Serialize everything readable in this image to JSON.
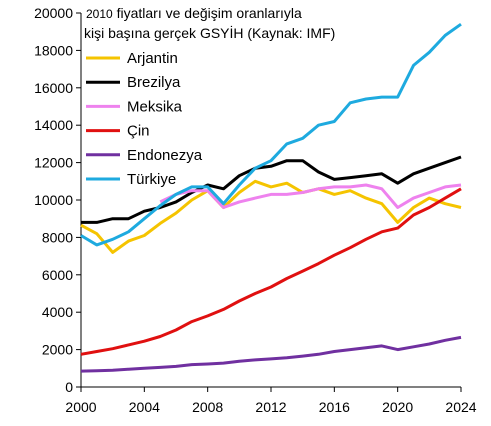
{
  "chart_data": {
    "type": "line",
    "title_lines": [
      "2010 fiyatları ve değişim oranlarıyla",
      "kişi başına gerçek GSYİH (Kaynak: IMF)"
    ],
    "title_year": "2010",
    "title_rest_1": " fiyatları ve değişim oranlarıyla",
    "title_line_2": "kişi başına gerçek GSYİH (Kaynak: IMF)",
    "xlim": [
      2000,
      2024
    ],
    "ylim": [
      0,
      20000
    ],
    "x_ticks": [
      2000,
      2004,
      2008,
      2012,
      2016,
      2020,
      2024
    ],
    "y_ticks": [
      0,
      2000,
      4000,
      6000,
      8000,
      10000,
      12000,
      14000,
      16000,
      18000,
      20000
    ],
    "legend_position": "top-left",
    "x": [
      2000,
      2001,
      2002,
      2003,
      2004,
      2005,
      2006,
      2007,
      2008,
      2009,
      2010,
      2011,
      2012,
      2013,
      2014,
      2015,
      2016,
      2017,
      2018,
      2019,
      2020,
      2021,
      2022,
      2023,
      2024
    ],
    "series": [
      {
        "name": "Arjantin",
        "color": "#f5c400",
        "values": [
          8650,
          8200,
          7200,
          7800,
          8100,
          8750,
          9300,
          10000,
          10500,
          9600,
          10400,
          11000,
          10700,
          10900,
          10400,
          10600,
          10300,
          10500,
          10100,
          9800,
          8800,
          9600,
          10100,
          9800,
          9600
        ]
      },
      {
        "name": "Brezilya",
        "color": "#000000",
        "values": [
          8800,
          8800,
          9000,
          9000,
          9400,
          9600,
          9900,
          10400,
          10800,
          10600,
          11300,
          11700,
          11800,
          12100,
          12100,
          11500,
          11100,
          11200,
          11300,
          11400,
          10900,
          11400,
          11700,
          12000,
          12300
        ]
      },
      {
        "name": "Meksika",
        "color": "#ee82ee",
        "values": [
          null,
          null,
          null,
          null,
          null,
          9900,
          10300,
          10500,
          10500,
          9600,
          9900,
          10100,
          10300,
          10300,
          10400,
          10600,
          10700,
          10700,
          10800,
          10600,
          9600,
          10100,
          10400,
          10700,
          10800
        ]
      },
      {
        "name": "Çin",
        "color": "#e01010",
        "values": [
          1750,
          1900,
          2050,
          2250,
          2450,
          2700,
          3050,
          3500,
          3800,
          4150,
          4600,
          5000,
          5350,
          5800,
          6200,
          6600,
          7050,
          7450,
          7900,
          8300,
          8500,
          9200,
          9600,
          10100,
          10600
        ]
      },
      {
        "name": "Endonezya",
        "color": "#7030a0",
        "values": [
          850,
          870,
          900,
          950,
          1000,
          1050,
          1100,
          1200,
          1230,
          1280,
          1380,
          1450,
          1500,
          1560,
          1650,
          1750,
          1900,
          2000,
          2100,
          2200,
          2000,
          2150,
          2300,
          2500,
          2650
        ]
      },
      {
        "name": "Türkiye",
        "color": "#1eaadf",
        "values": [
          8100,
          7600,
          7900,
          8300,
          9000,
          9700,
          10300,
          10700,
          10700,
          9800,
          10800,
          11700,
          12100,
          13000,
          13300,
          14000,
          14200,
          15200,
          15400,
          15500,
          15500,
          17200,
          17900,
          18800,
          19400
        ]
      }
    ]
  }
}
